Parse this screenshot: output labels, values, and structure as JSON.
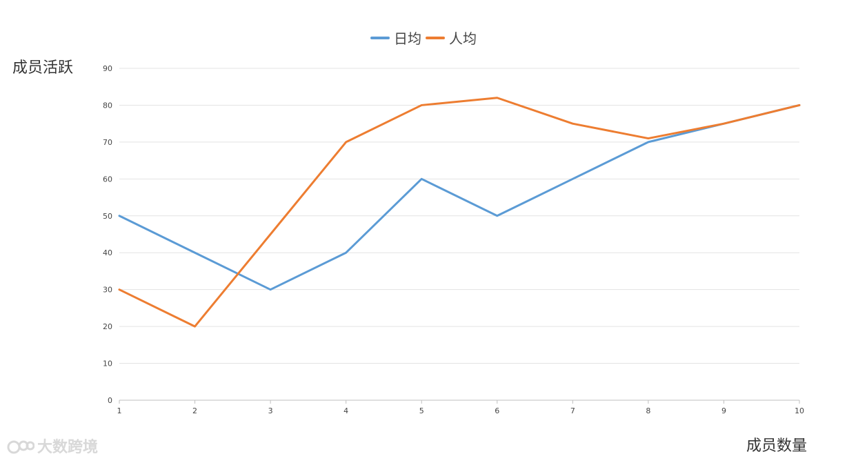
{
  "chart_data": {
    "type": "line",
    "x": [
      1,
      2,
      3,
      4,
      5,
      6,
      7,
      8,
      9,
      10
    ],
    "series": [
      {
        "name": "日均",
        "color": "#5b9bd5",
        "values": [
          50,
          40,
          30,
          40,
          60,
          50,
          60,
          70,
          75,
          80
        ]
      },
      {
        "name": "人均",
        "color": "#ed7d31",
        "values": [
          30,
          20,
          45,
          70,
          80,
          82,
          75,
          71,
          75,
          80
        ]
      }
    ],
    "ylabel": "成员活跃",
    "xlabel": "成员数量",
    "ylim": [
      0,
      90
    ],
    "yticks": [
      0,
      10,
      20,
      30,
      40,
      50,
      60,
      70,
      80,
      90
    ],
    "xticks": [
      1,
      2,
      3,
      4,
      5,
      6,
      7,
      8,
      9,
      10
    ],
    "grid": true,
    "legend_position": "top-center"
  },
  "watermark": {
    "text": "大数跨境"
  }
}
